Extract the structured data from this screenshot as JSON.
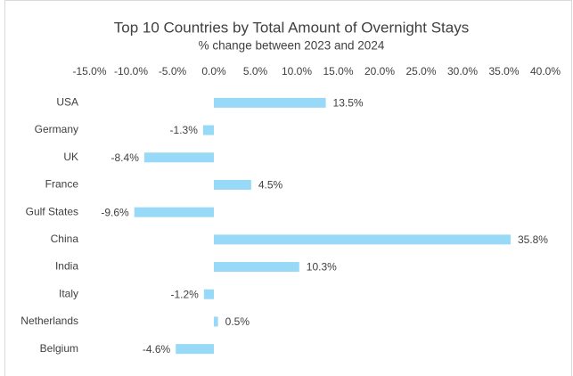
{
  "chart_data": {
    "type": "bar",
    "orientation": "horizontal",
    "title": "Top 10 Countries by Total Amount of Overnight Stays",
    "subtitle": "% change between 2023 and 2024",
    "categories": [
      "USA",
      "Germany",
      "UK",
      "France",
      "Gulf States",
      "China",
      "India",
      "Italy",
      "Netherlands",
      "Belgium"
    ],
    "values": [
      13.5,
      -1.3,
      -8.4,
      4.5,
      -9.6,
      35.8,
      10.3,
      -1.2,
      0.5,
      -4.6
    ],
    "value_labels": [
      "13.5%",
      "-1.3%",
      "-8.4%",
      "4.5%",
      "-9.6%",
      "35.8%",
      "10.3%",
      "-1.2%",
      "0.5%",
      "-4.6%"
    ],
    "color": "#97d9f6",
    "xlim": [
      -15,
      40
    ],
    "xticks": [
      {
        "value": -15,
        "label": "-15.0%"
      },
      {
        "value": -10,
        "label": "-10.0%"
      },
      {
        "value": -5,
        "label": "-5.0%"
      },
      {
        "value": 0,
        "label": "0.0%"
      },
      {
        "value": 5,
        "label": "5.0%"
      },
      {
        "value": 10,
        "label": "10.0%"
      },
      {
        "value": 15,
        "label": "15.0%"
      },
      {
        "value": 20,
        "label": "20.0%"
      },
      {
        "value": 25,
        "label": "25.0%"
      },
      {
        "value": 30,
        "label": "30.0%"
      },
      {
        "value": 35,
        "label": "35.0%"
      },
      {
        "value": 40,
        "label": "40.0%"
      }
    ],
    "grid": false
  }
}
